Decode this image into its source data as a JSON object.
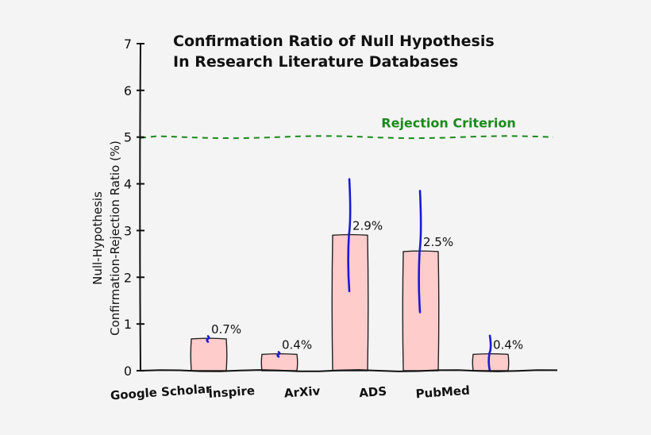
{
  "chart_data": {
    "type": "bar",
    "title": "Confirmation Ratio of Null Hypothesis",
    "subtitle": "In Research Literature Databases",
    "xlabel": "",
    "ylabel_line1": "Null-Hypothesis",
    "ylabel_line2": "Confirmation-Rejection Ratio (%)",
    "ylim": [
      0,
      7
    ],
    "yticks": [
      "0",
      "1",
      "2",
      "3",
      "4",
      "5",
      "6",
      "7"
    ],
    "grid": false,
    "categories": [
      "Google Scholar",
      "Inspire",
      "ArXiv",
      "ADS",
      "PubMed"
    ],
    "series": [
      {
        "values": [
          0.68,
          0.35,
          2.9,
          2.55,
          0.35
        ],
        "labels": [
          "0.7%",
          "0.4%",
          "2.9%",
          "2.5%",
          "0.4%"
        ],
        "error_low": [
          0.62,
          0.3,
          1.7,
          1.25,
          0.0
        ],
        "error_high": [
          0.74,
          0.4,
          4.1,
          3.85,
          0.75
        ]
      }
    ],
    "reference_line": {
      "value": 5,
      "label": "Rejection Criterion",
      "color": "#1a8a1a",
      "style": "dashed"
    },
    "colors": {
      "bar_fill": "#ffcccc",
      "bar_stroke": "#222222",
      "error_bar": "#1a1ad6",
      "axis": "#111111"
    }
  }
}
